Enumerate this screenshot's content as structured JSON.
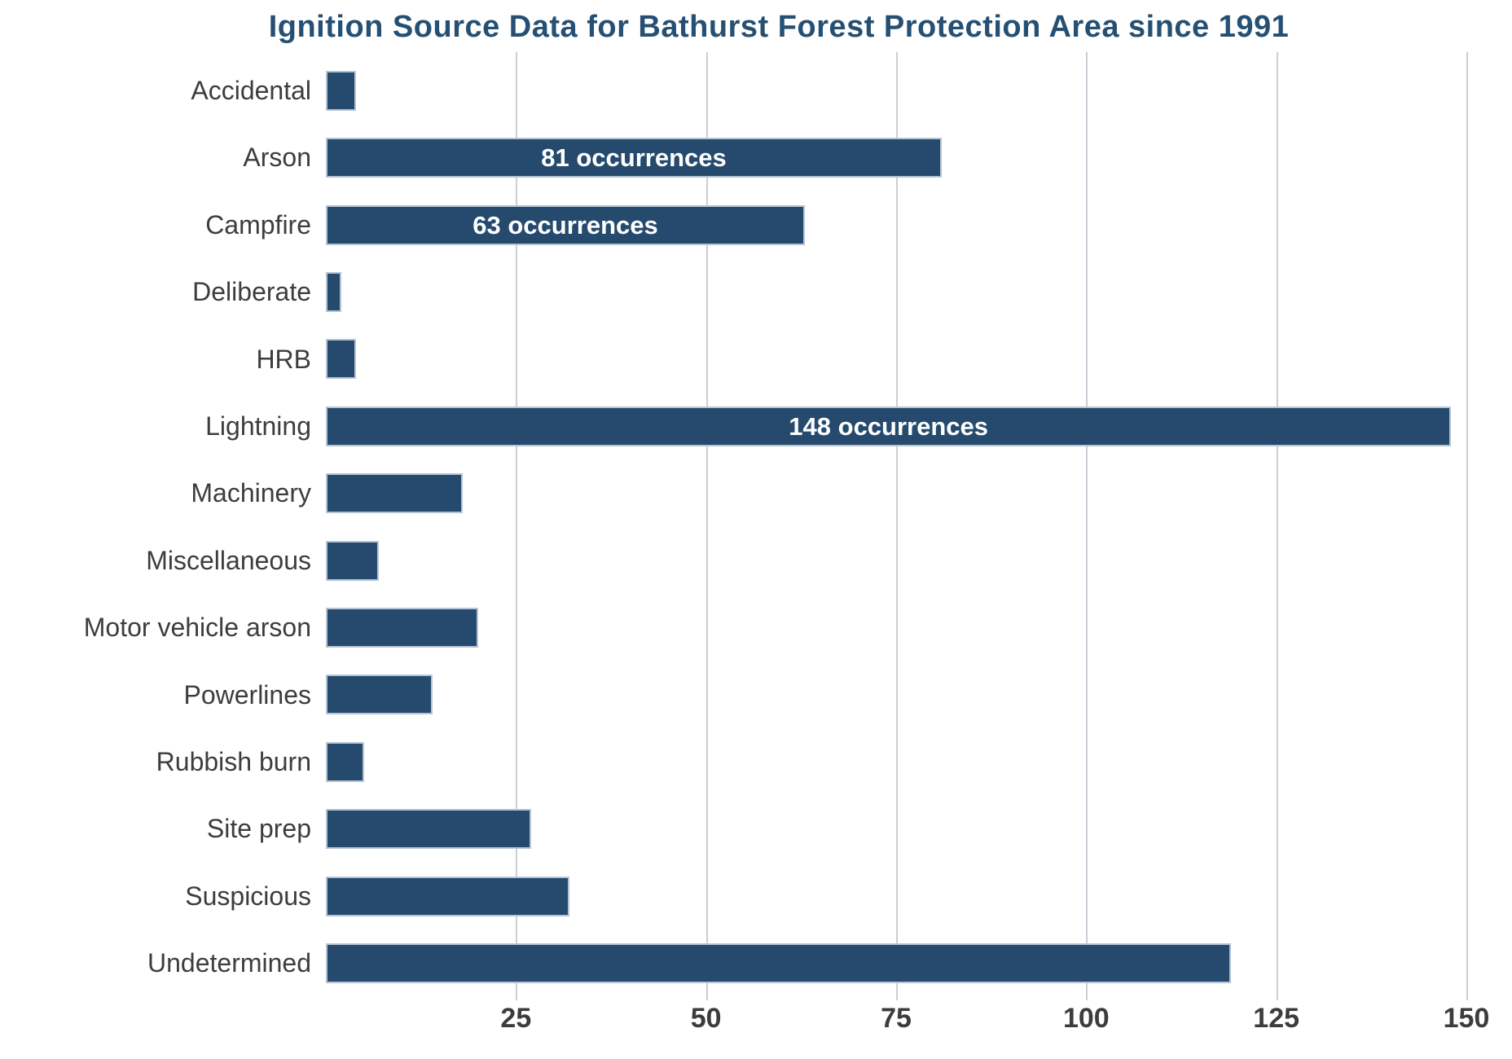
{
  "title": "Ignition Source Data for Bathurst Forest Protection Area since 1991",
  "colors": {
    "bar": "#254a6d",
    "bar_border": "#b6c4d3",
    "title_text": "#255073",
    "category_text": "#3d3d3d",
    "tick_text": "#3c3c3c",
    "gridline": "#c9cfd6",
    "bar_label_text": "#ffffff"
  },
  "chart_data": {
    "type": "bar",
    "orientation": "horizontal",
    "title": "Ignition Source Data for Bathurst Forest Protection Area since 1991",
    "categories": [
      "Accidental",
      "Arson",
      "Campfire",
      "Deliberate",
      "HRB",
      "Lightning",
      "Machinery",
      "Miscellaneous",
      "Motor vehicle arson",
      "Powerlines",
      "Rubbish burn",
      "Site prep",
      "Suspicious",
      "Undetermined"
    ],
    "values": [
      4,
      81,
      63,
      2,
      4,
      148,
      18,
      7,
      20,
      14,
      5,
      27,
      32,
      119
    ],
    "bar_labels": [
      "",
      "81 occurrences",
      "63 occurrences",
      "",
      "",
      "148 occurrences",
      "",
      "",
      "",
      "",
      "",
      "",
      "",
      ""
    ],
    "x_ticks": [
      25,
      50,
      75,
      100,
      125,
      150
    ],
    "xlim": [
      0,
      150
    ],
    "xlabel": "",
    "ylabel": "",
    "grid": "vertical",
    "legend": "none"
  }
}
